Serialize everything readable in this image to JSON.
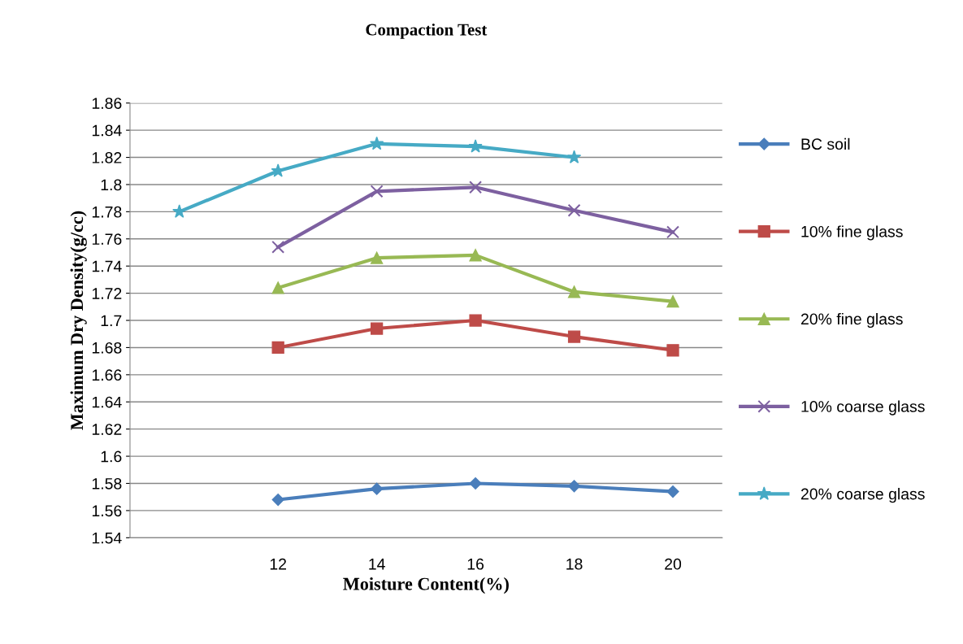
{
  "chart_data": {
    "type": "line",
    "title": "Compaction Test",
    "xlabel": "Moisture Content(%)",
    "ylabel": "Maximum Dry Density(g/cc)",
    "categories": [
      null,
      "12",
      "14",
      "16",
      "18",
      "20"
    ],
    "series": [
      {
        "name": "BC soil",
        "color": "#4a7ebb",
        "marker": "diamond",
        "values": [
          null,
          1.568,
          1.576,
          1.58,
          1.578,
          1.574
        ]
      },
      {
        "name": "10% fine glass",
        "color": "#be4b48",
        "marker": "square",
        "values": [
          null,
          1.68,
          1.694,
          1.7,
          1.688,
          1.678
        ]
      },
      {
        "name": "20% fine glass",
        "color": "#98b954",
        "marker": "triangle",
        "values": [
          null,
          1.724,
          1.746,
          1.748,
          1.721,
          1.714
        ]
      },
      {
        "name": "10% coarse glass",
        "color": "#7d60a0",
        "marker": "cross",
        "values": [
          null,
          1.754,
          1.795,
          1.798,
          1.781,
          1.765
        ]
      },
      {
        "name": "20% coarse glass",
        "color": "#46aac5",
        "marker": "star",
        "values": [
          1.78,
          1.81,
          1.83,
          1.828,
          1.82,
          null
        ]
      }
    ],
    "ylim": [
      1.54,
      1.86
    ],
    "yticks": [
      1.54,
      1.56,
      1.58,
      1.6,
      1.62,
      1.64,
      1.66,
      1.68,
      1.7,
      1.72,
      1.74,
      1.76,
      1.78,
      1.8,
      1.82,
      1.84,
      1.86
    ],
    "grid": "y",
    "legend": "right",
    "line_style": "solid"
  }
}
